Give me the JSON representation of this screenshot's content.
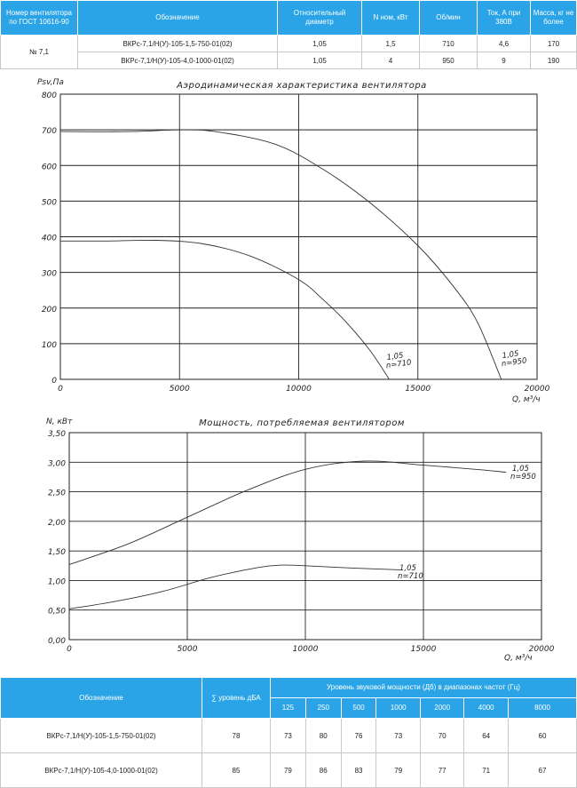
{
  "top_table": {
    "headers": [
      "Номер вентилятора по ГОСТ 10616-90",
      "Обозначение",
      "Относительный диаметр",
      "N ном, кВт",
      "Об/мин",
      "Ток, А при 380В",
      "Масса, кг не более"
    ],
    "group_label": "№ 7,1",
    "rows": [
      {
        "designation": "ВКРс-7,1/Н(У)-105-1,5-750-01(02)",
        "diameter": "1,05",
        "power": "1,5",
        "rpm": "710",
        "current": "4,6",
        "mass": "170"
      },
      {
        "designation": "ВКРс-7,1/Н(У)-105-4,0-1000-01(02)",
        "diameter": "1,05",
        "power": "4",
        "rpm": "950",
        "current": "9",
        "mass": "190"
      }
    ]
  },
  "chart_data": [
    {
      "type": "line",
      "title": "Аэродинамическая характеристика вентилятора",
      "ylabel": "Psv,Па",
      "xlabel": "Q, м³/ч",
      "xlim": [
        0,
        20000
      ],
      "ylim": [
        0,
        800
      ],
      "xticks": [
        "0",
        "5000",
        "10000",
        "15000",
        "20000"
      ],
      "yticks": [
        "0",
        "100",
        "200",
        "300",
        "400",
        "500",
        "600",
        "700",
        "800"
      ],
      "grid": true,
      "series": [
        {
          "label_top": "1,05",
          "label_bottom": "n=710",
          "x": [
            0,
            2000,
            4000,
            6000,
            8000,
            10000,
            11000,
            12000,
            13000,
            13800
          ],
          "y": [
            388,
            388,
            390,
            380,
            345,
            280,
            225,
            160,
            80,
            0
          ]
        },
        {
          "label_top": "1,05",
          "label_bottom": "n=950",
          "x": [
            0,
            3000,
            5000,
            6500,
            9000,
            11000,
            13000,
            15000,
            16500,
            17500,
            18500
          ],
          "y": [
            695,
            695,
            700,
            695,
            660,
            590,
            495,
            375,
            260,
            160,
            0
          ]
        }
      ]
    },
    {
      "type": "line",
      "title": "Мощность, потребляемая вентилятором",
      "ylabel": "N, кВт",
      "xlabel": "Q, м³/ч",
      "xlim": [
        0,
        20000
      ],
      "ylim": [
        0,
        3.5
      ],
      "xticks": [
        "0",
        "5000",
        "10000",
        "15000",
        "20000"
      ],
      "yticks": [
        "0,00",
        "0,50",
        "1,00",
        "1,50",
        "2,00",
        "2,50",
        "3,00",
        "3,50"
      ],
      "grid": true,
      "series": [
        {
          "label_top": "1,05",
          "label_bottom": "n=710",
          "x": [
            0,
            2000,
            4000,
            6000,
            8000,
            9000,
            10000,
            12000,
            14000
          ],
          "y": [
            0.52,
            0.65,
            0.82,
            1.05,
            1.22,
            1.26,
            1.25,
            1.21,
            1.18
          ]
        },
        {
          "label_top": "1,05",
          "label_bottom": "n=950",
          "x": [
            0,
            2500,
            5000,
            7500,
            10000,
            12500,
            15000,
            17500,
            18500
          ],
          "y": [
            1.27,
            1.62,
            2.07,
            2.52,
            2.88,
            3.02,
            2.95,
            2.87,
            2.83
          ]
        }
      ]
    }
  ],
  "bottom_table": {
    "col_designation": "Обозначение",
    "col_level": "∑ уровень дБА",
    "col_bands": "Уровень звуковой мощности (Дб) в диапазонах частот (Гц)",
    "bands": [
      "125",
      "250",
      "500",
      "1000",
      "2000",
      "4000",
      "8000"
    ],
    "rows": [
      {
        "designation": "ВКРс-7,1/Н(У)-105-1,5-750-01(02)",
        "level": "78",
        "values": [
          "73",
          "80",
          "76",
          "73",
          "70",
          "64",
          "60"
        ]
      },
      {
        "designation": "ВКРс-7,1/Н(У)-105-4,0-1000-01(02)",
        "level": "85",
        "values": [
          "79",
          "86",
          "83",
          "79",
          "77",
          "71",
          "67"
        ]
      }
    ]
  }
}
